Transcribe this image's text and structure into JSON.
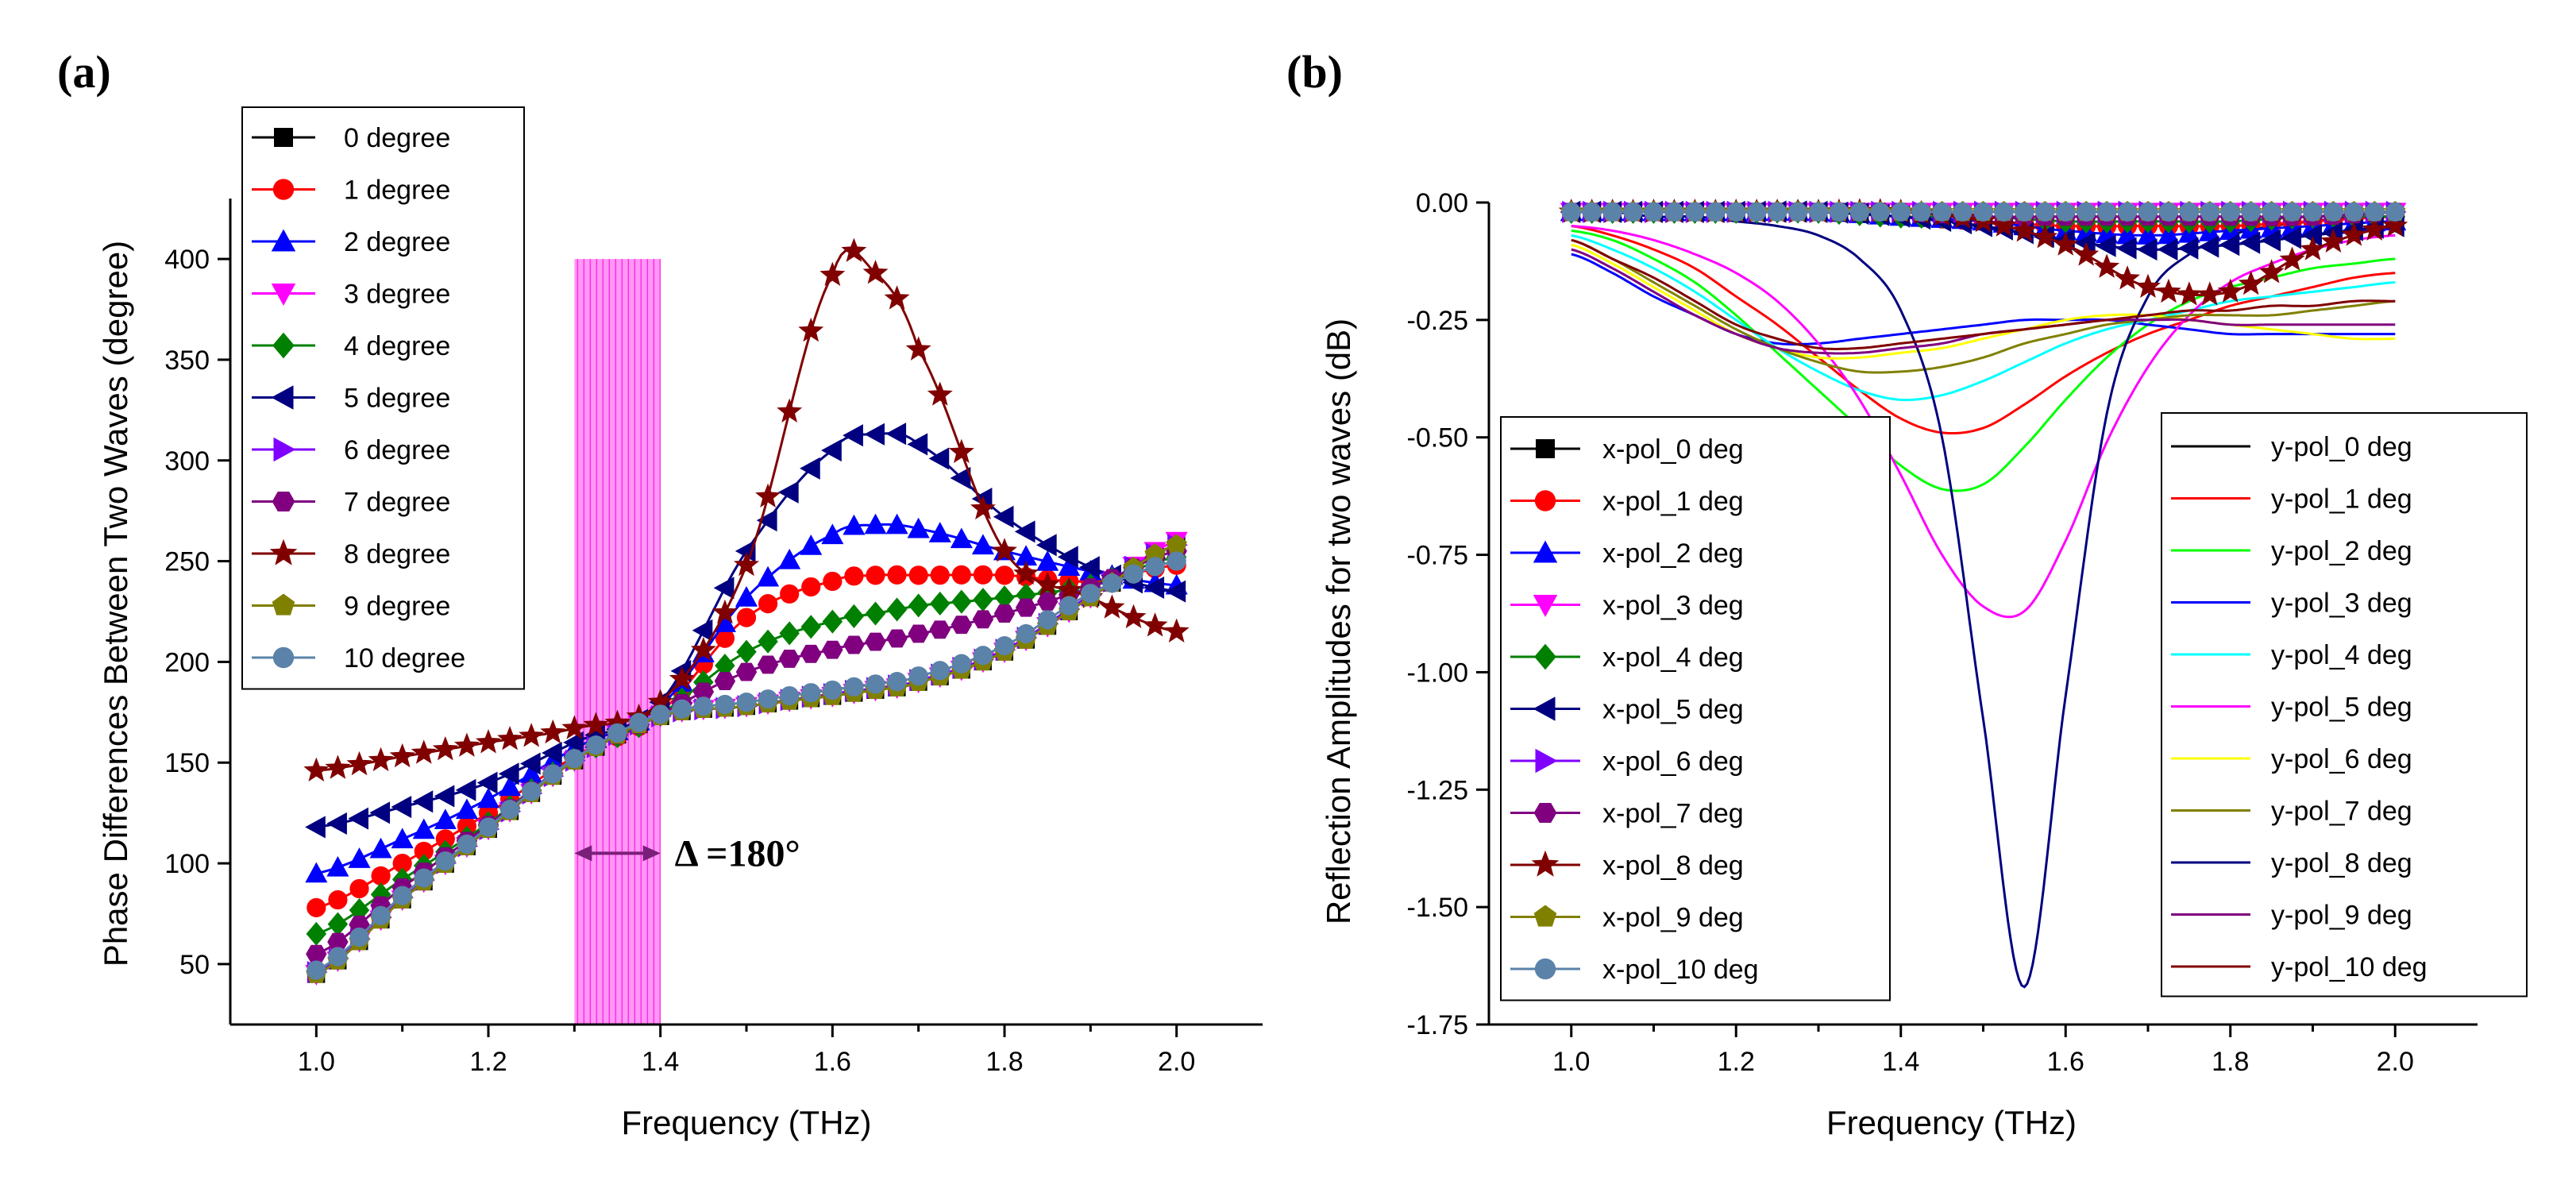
{
  "chart_data": [
    {
      "type": "line",
      "panel_label": "(a)",
      "xlabel": "Frequency (THz)",
      "ylabel": "Phase Differences Between Two Waves (degree)",
      "xlim": [
        0.9,
        2.1
      ],
      "ylim": [
        20,
        430
      ],
      "xticks": [
        1.0,
        1.2,
        1.4,
        1.6,
        1.8,
        2.0
      ],
      "xtick_labels": [
        "1.0",
        "1.2",
        "1.4",
        "1.6",
        "1.8",
        "2.0"
      ],
      "yticks": [
        50,
        100,
        150,
        200,
        250,
        300,
        350,
        400
      ],
      "ytick_labels": [
        "50",
        "100",
        "150",
        "200",
        "250",
        "300",
        "350",
        "400"
      ],
      "x": [
        1.0,
        1.1,
        1.2,
        1.3,
        1.4,
        1.5,
        1.6,
        1.65,
        1.7,
        1.8,
        1.9,
        2.0
      ],
      "series": [
        {
          "name": "0 degree",
          "color": "#000000",
          "marker": "square",
          "values": [
            45,
            82,
            117,
            151,
            173,
            178,
            183,
            186,
            190,
            205,
            232,
            258
          ]
        },
        {
          "name": "1 degree",
          "color": "#ff0000",
          "marker": "circle",
          "values": [
            78,
            100,
            125,
            153,
            175,
            222,
            240,
            243,
            243,
            243,
            240,
            248
          ]
        },
        {
          "name": "2 degree",
          "color": "#0000ff",
          "marker": "triangle-up",
          "values": [
            95,
            112,
            132,
            157,
            178,
            232,
            263,
            268,
            266,
            255,
            245,
            238
          ]
        },
        {
          "name": "3 degree",
          "color": "#ff00ff",
          "marker": "triangle-down",
          "values": [
            45,
            82,
            117,
            151,
            173,
            178,
            183,
            186,
            190,
            205,
            232,
            260
          ]
        },
        {
          "name": "4 degree",
          "color": "#008000",
          "marker": "diamond",
          "values": [
            65,
            92,
            120,
            152,
            174,
            205,
            220,
            224,
            228,
            232,
            238,
            252
          ]
        },
        {
          "name": "5 degree",
          "color": "#000080",
          "marker": "triangle-left",
          "values": [
            118,
            128,
            140,
            160,
            180,
            255,
            305,
            313,
            308,
            272,
            247,
            235
          ]
        },
        {
          "name": "6 degree",
          "color": "#8000ff",
          "marker": "triangle-right",
          "values": [
            46,
            83,
            117,
            151,
            173,
            178,
            184,
            187,
            191,
            206,
            233,
            258
          ]
        },
        {
          "name": "7 degree",
          "color": "#800080",
          "marker": "hexagon",
          "values": [
            55,
            88,
            119,
            152,
            174,
            195,
            206,
            210,
            214,
            224,
            237,
            255
          ]
        },
        {
          "name": "8 degree",
          "color": "#800000",
          "marker": "star",
          "values": [
            146,
            153,
            160,
            167,
            180,
            248,
            392,
            393,
            355,
            255,
            232,
            215
          ]
        },
        {
          "name": "9 degree",
          "color": "#808000",
          "marker": "pentagon",
          "values": [
            45,
            82,
            117,
            151,
            173,
            178,
            183,
            186,
            190,
            205,
            232,
            258
          ]
        },
        {
          "name": "10 degree",
          "color": "#5b82a8",
          "marker": "circle",
          "values": [
            47,
            84,
            118,
            152,
            174,
            180,
            186,
            189,
            193,
            208,
            234,
            250
          ]
        }
      ],
      "highlight_band": {
        "x_range": [
          1.3,
          1.4
        ],
        "y_range": [
          20,
          400
        ],
        "color": "#ff44ee"
      },
      "annotation": "Δ =180°",
      "legend_position": "top-left"
    },
    {
      "type": "line",
      "panel_label": "(b)",
      "xlabel": "Frequency (THz)",
      "ylabel": "Reflection Amplitudes for two waves (dB)",
      "xlim": [
        0.9,
        2.1
      ],
      "ylim": [
        -1.75,
        0.0
      ],
      "xticks": [
        1.0,
        1.2,
        1.4,
        1.6,
        1.8,
        2.0
      ],
      "xtick_labels": [
        "1.0",
        "1.2",
        "1.4",
        "1.6",
        "1.8",
        "2.0"
      ],
      "yticks": [
        0.0,
        -0.25,
        -0.5,
        -0.75,
        -1.0,
        -1.25,
        -1.5,
        -1.75
      ],
      "ytick_labels": [
        "0.00",
        "-0.25",
        "-0.50",
        "-0.75",
        "-1.00",
        "-1.25",
        "-1.50",
        "-1.75"
      ],
      "x_series_x": [
        1.0,
        1.1,
        1.2,
        1.3,
        1.4,
        1.5,
        1.6,
        1.7,
        1.8,
        1.9,
        2.0
      ],
      "x_series": [
        {
          "name": "x-pol_0 deg",
          "color": "#000000",
          "marker": "square",
          "values": [
            -0.02,
            -0.02,
            -0.02,
            -0.02,
            -0.02,
            -0.02,
            -0.02,
            -0.02,
            -0.02,
            -0.02,
            -0.02
          ]
        },
        {
          "name": "x-pol_1 deg",
          "color": "#ff0000",
          "marker": "circle",
          "values": [
            -0.02,
            -0.02,
            -0.02,
            -0.02,
            -0.03,
            -0.04,
            -0.05,
            -0.05,
            -0.05,
            -0.04,
            -0.03
          ]
        },
        {
          "name": "x-pol_2 deg",
          "color": "#0000ff",
          "marker": "triangle-up",
          "values": [
            -0.02,
            -0.02,
            -0.02,
            -0.02,
            -0.03,
            -0.04,
            -0.06,
            -0.07,
            -0.06,
            -0.05,
            -0.04
          ]
        },
        {
          "name": "x-pol_3 deg",
          "color": "#ff00ff",
          "marker": "triangle-down",
          "values": [
            -0.02,
            -0.02,
            -0.02,
            -0.02,
            -0.02,
            -0.02,
            -0.02,
            -0.02,
            -0.02,
            -0.02,
            -0.02
          ]
        },
        {
          "name": "x-pol_4 deg",
          "color": "#008000",
          "marker": "diamond",
          "values": [
            -0.02,
            -0.02,
            -0.02,
            -0.02,
            -0.03,
            -0.03,
            -0.04,
            -0.04,
            -0.04,
            -0.03,
            -0.03
          ]
        },
        {
          "name": "x-pol_5 deg",
          "color": "#000080",
          "marker": "triangle-left",
          "values": [
            -0.02,
            -0.02,
            -0.02,
            -0.02,
            -0.03,
            -0.05,
            -0.08,
            -0.1,
            -0.09,
            -0.07,
            -0.05
          ]
        },
        {
          "name": "x-pol_6 deg",
          "color": "#8000ff",
          "marker": "triangle-right",
          "values": [
            -0.02,
            -0.02,
            -0.02,
            -0.02,
            -0.02,
            -0.02,
            -0.02,
            -0.02,
            -0.02,
            -0.02,
            -0.02
          ]
        },
        {
          "name": "x-pol_7 deg",
          "color": "#800080",
          "marker": "hexagon",
          "values": [
            -0.02,
            -0.02,
            -0.02,
            -0.02,
            -0.02,
            -0.03,
            -0.03,
            -0.03,
            -0.03,
            -0.03,
            -0.02
          ]
        },
        {
          "name": "x-pol_8 deg",
          "color": "#800000",
          "marker": "star",
          "values": [
            -0.02,
            -0.02,
            -0.02,
            -0.02,
            -0.02,
            -0.04,
            -0.09,
            -0.18,
            -0.19,
            -0.1,
            -0.05
          ]
        },
        {
          "name": "x-pol_9 deg",
          "color": "#808000",
          "marker": "pentagon",
          "values": [
            -0.02,
            -0.02,
            -0.02,
            -0.02,
            -0.02,
            -0.02,
            -0.02,
            -0.02,
            -0.02,
            -0.02,
            -0.02
          ]
        },
        {
          "name": "x-pol_10 deg",
          "color": "#5b82a8",
          "marker": "circle",
          "values": [
            -0.02,
            -0.02,
            -0.02,
            -0.02,
            -0.02,
            -0.02,
            -0.02,
            -0.02,
            -0.02,
            -0.02,
            -0.02
          ]
        }
      ],
      "y_series_x": [
        1.0,
        1.05,
        1.1,
        1.15,
        1.2,
        1.25,
        1.3,
        1.35,
        1.4,
        1.45,
        1.5,
        1.55,
        1.6,
        1.65,
        1.7,
        1.75,
        1.8,
        1.85,
        1.9,
        1.95,
        2.0
      ],
      "y_series": [
        {
          "name": "y-pol_0 deg",
          "color": "#000000",
          "values": [
            -0.02,
            -0.02,
            -0.02,
            -0.02,
            -0.02,
            -0.02,
            -0.02,
            -0.02,
            -0.02,
            -0.02,
            -0.02,
            -0.02,
            -0.02,
            -0.02,
            -0.02,
            -0.02,
            -0.02,
            -0.02,
            -0.02,
            -0.02,
            -0.02
          ]
        },
        {
          "name": "y-pol_1 deg",
          "color": "#ff0000",
          "values": [
            -0.05,
            -0.07,
            -0.1,
            -0.14,
            -0.2,
            -0.26,
            -0.33,
            -0.4,
            -0.46,
            -0.49,
            -0.48,
            -0.43,
            -0.37,
            -0.32,
            -0.28,
            -0.25,
            -0.22,
            -0.2,
            -0.18,
            -0.16,
            -0.15
          ]
        },
        {
          "name": "y-pol_2 deg",
          "color": "#00ff00",
          "values": [
            -0.06,
            -0.08,
            -0.12,
            -0.17,
            -0.24,
            -0.32,
            -0.4,
            -0.48,
            -0.56,
            -0.61,
            -0.6,
            -0.52,
            -0.42,
            -0.33,
            -0.26,
            -0.21,
            -0.18,
            -0.16,
            -0.14,
            -0.13,
            -0.12
          ]
        },
        {
          "name": "y-pol_3 deg",
          "color": "#0000ff",
          "values": [
            -0.11,
            -0.15,
            -0.2,
            -0.24,
            -0.28,
            -0.3,
            -0.3,
            -0.29,
            -0.28,
            -0.27,
            -0.26,
            -0.25,
            -0.25,
            -0.25,
            -0.26,
            -0.27,
            -0.28,
            -0.28,
            -0.28,
            -0.28,
            -0.28
          ]
        },
        {
          "name": "y-pol_4 deg",
          "color": "#00ffff",
          "values": [
            -0.07,
            -0.1,
            -0.14,
            -0.19,
            -0.25,
            -0.31,
            -0.36,
            -0.4,
            -0.42,
            -0.41,
            -0.38,
            -0.34,
            -0.3,
            -0.27,
            -0.25,
            -0.23,
            -0.21,
            -0.2,
            -0.19,
            -0.18,
            -0.17
          ]
        },
        {
          "name": "y-pol_5 deg",
          "color": "#ff00ff",
          "values": [
            -0.05,
            -0.06,
            -0.08,
            -0.11,
            -0.15,
            -0.21,
            -0.3,
            -0.42,
            -0.58,
            -0.75,
            -0.86,
            -0.87,
            -0.72,
            -0.51,
            -0.35,
            -0.24,
            -0.17,
            -0.13,
            -0.1,
            -0.08,
            -0.07
          ]
        },
        {
          "name": "y-pol_6 deg",
          "color": "#ffff00",
          "values": [
            -0.09,
            -0.13,
            -0.18,
            -0.23,
            -0.28,
            -0.31,
            -0.33,
            -0.33,
            -0.32,
            -0.31,
            -0.29,
            -0.27,
            -0.25,
            -0.24,
            -0.24,
            -0.25,
            -0.26,
            -0.27,
            -0.28,
            -0.29,
            -0.29
          ]
        },
        {
          "name": "y-pol_7 deg",
          "color": "#808000",
          "values": [
            -0.08,
            -0.12,
            -0.17,
            -0.22,
            -0.27,
            -0.31,
            -0.34,
            -0.36,
            -0.36,
            -0.35,
            -0.33,
            -0.3,
            -0.28,
            -0.26,
            -0.25,
            -0.24,
            -0.24,
            -0.24,
            -0.23,
            -0.22,
            -0.21
          ]
        },
        {
          "name": "y-pol_8 deg",
          "color": "#000080",
          "values": [
            -0.02,
            -0.02,
            -0.03,
            -0.03,
            -0.04,
            -0.05,
            -0.07,
            -0.12,
            -0.23,
            -0.5,
            -1.1,
            -1.67,
            -1.05,
            -0.45,
            -0.2,
            -0.11,
            -0.07,
            -0.05,
            -0.04,
            -0.03,
            -0.03
          ]
        },
        {
          "name": "y-pol_9 deg",
          "color": "#800080",
          "values": [
            -0.1,
            -0.14,
            -0.19,
            -0.24,
            -0.28,
            -0.31,
            -0.32,
            -0.32,
            -0.31,
            -0.3,
            -0.28,
            -0.27,
            -0.26,
            -0.25,
            -0.25,
            -0.25,
            -0.26,
            -0.26,
            -0.26,
            -0.26,
            -0.26
          ]
        },
        {
          "name": "y-pol_10 deg",
          "color": "#800000",
          "values": [
            -0.08,
            -0.12,
            -0.16,
            -0.21,
            -0.26,
            -0.29,
            -0.31,
            -0.31,
            -0.3,
            -0.29,
            -0.28,
            -0.27,
            -0.26,
            -0.25,
            -0.24,
            -0.23,
            -0.23,
            -0.22,
            -0.22,
            -0.21,
            -0.21
          ]
        }
      ],
      "legend_position": "bottom-left and right"
    }
  ]
}
